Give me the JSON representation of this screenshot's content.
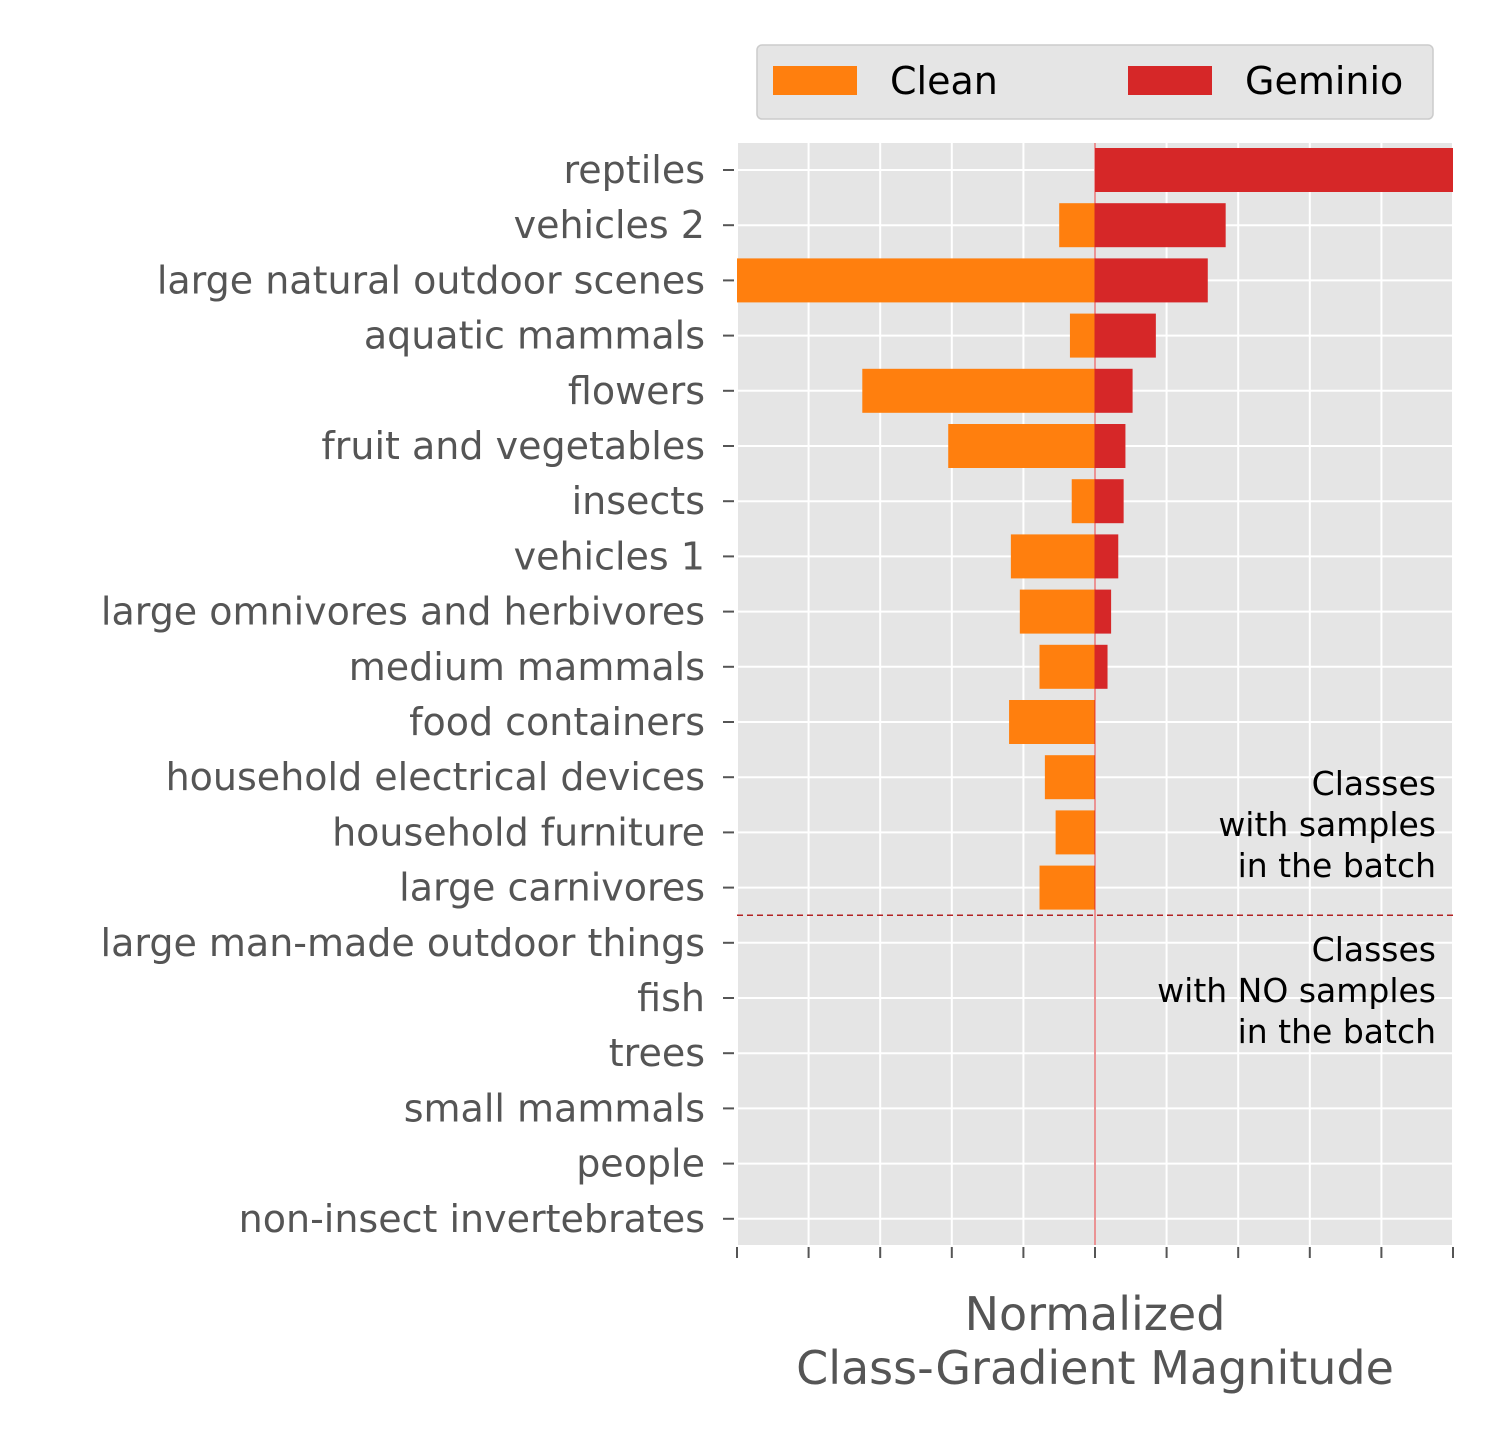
{
  "chart_data": {
    "type": "bar",
    "orientation": "horizontal-diverging",
    "xlabel_lines": [
      "Normalized",
      "Class-Gradient Magnitude"
    ],
    "xlim": [
      -1,
      1
    ],
    "x_tick_count": 11,
    "grid": true,
    "legend_position": "top-center",
    "categories": [
      "reptiles",
      "vehicles 2",
      "large natural outdoor scenes",
      "aquatic mammals",
      "flowers",
      "fruit and vegetables",
      "insects",
      "vehicles 1",
      "large omnivores and herbivores",
      "medium mammals",
      "food containers",
      "household electrical devices",
      "household furniture",
      "large carnivores",
      "large man-made outdoor things",
      "fish",
      "trees",
      "small mammals",
      "people",
      "non-insect invertebrates"
    ],
    "series": [
      {
        "name": "Clean",
        "color": "#ff7f0e",
        "direction": "left",
        "values": [
          0.0,
          0.1,
          1.0,
          0.07,
          0.65,
          0.41,
          0.065,
          0.235,
          0.21,
          0.155,
          0.24,
          0.14,
          0.11,
          0.155,
          0,
          0,
          0,
          0,
          0,
          0
        ]
      },
      {
        "name": "Geminio",
        "color": "#d62728",
        "direction": "right",
        "values": [
          1.0,
          0.365,
          0.315,
          0.17,
          0.105,
          0.085,
          0.08,
          0.065,
          0.045,
          0.035,
          0,
          0,
          0,
          0,
          0,
          0,
          0,
          0,
          0,
          0
        ]
      }
    ],
    "divider_after_index": 13,
    "annotations": [
      {
        "position": "above-divider",
        "lines": [
          "Classes",
          "with samples",
          "in the batch"
        ]
      },
      {
        "position": "below-divider",
        "lines": [
          "Classes",
          "with NO samples",
          "in the batch"
        ]
      }
    ]
  }
}
